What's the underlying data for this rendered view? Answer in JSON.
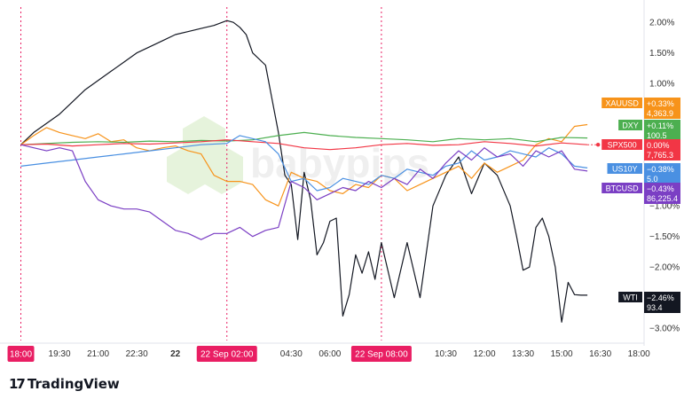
{
  "branding": {
    "logo_glyph": "17",
    "name": "TradingView",
    "watermark": "babypips"
  },
  "chart_data": {
    "type": "line",
    "y_axis": {
      "unit": "%",
      "range": [
        -3.2,
        2.25
      ],
      "ticks": [
        {
          "value": 2.0,
          "label": "2.00%"
        },
        {
          "value": 1.5,
          "label": "1.50%"
        },
        {
          "value": 1.0,
          "label": "1.00%"
        },
        {
          "value": -1.0,
          "label": "−1.00%"
        },
        {
          "value": -1.5,
          "label": "−1.50%"
        },
        {
          "value": -2.0,
          "label": "−2.00%"
        },
        {
          "value": -3.0,
          "label": "−3.00%"
        }
      ]
    },
    "x_axis": {
      "range_hours": [
        17.5,
        42.2
      ],
      "ticks": [
        {
          "t": 19.5,
          "label": "19:30"
        },
        {
          "t": 21.0,
          "label": "21:00"
        },
        {
          "t": 22.5,
          "label": "22:30"
        },
        {
          "t": 24.0,
          "label": "22"
        },
        {
          "t": 28.5,
          "label": "04:30"
        },
        {
          "t": 30.0,
          "label": "06:00"
        },
        {
          "t": 34.5,
          "label": "10:30"
        },
        {
          "t": 36.0,
          "label": "12:00"
        },
        {
          "t": 37.5,
          "label": "13:30"
        },
        {
          "t": 39.0,
          "label": "15:00"
        },
        {
          "t": 40.5,
          "label": "16:30"
        },
        {
          "t": 42.0,
          "label": "18:00"
        }
      ],
      "highlight_labels": [
        {
          "t": 18.0,
          "label": "18:00"
        },
        {
          "t": 26.0,
          "label": "22 Sep   02:00"
        },
        {
          "t": 32.0,
          "label": "22 Sep   08:00"
        }
      ]
    },
    "series": [
      {
        "name": "WTI",
        "color": "#131722",
        "change": "−2.46%",
        "price": "93.4",
        "t": [
          18,
          18.5,
          19,
          19.5,
          20,
          20.5,
          21,
          21.5,
          22,
          22.5,
          23,
          23.5,
          24,
          24.5,
          25,
          25.5,
          26,
          26.25,
          26.5,
          26.75,
          27,
          27.5,
          28,
          28.25,
          28.5,
          28.75,
          29,
          29.25,
          29.5,
          29.75,
          30,
          30.25,
          30.5,
          30.75,
          31,
          31.25,
          31.5,
          31.75,
          32,
          32.5,
          33,
          33.5,
          34,
          34.5,
          35,
          35.5,
          36,
          36.5,
          37,
          37.25,
          37.5,
          37.75,
          38,
          38.25,
          38.5,
          38.75,
          39,
          39.25,
          39.5,
          39.75,
          40
        ],
        "values": [
          0,
          0.2,
          0.35,
          0.5,
          0.7,
          0.9,
          1.05,
          1.2,
          1.35,
          1.5,
          1.6,
          1.7,
          1.8,
          1.85,
          1.9,
          1.95,
          2.03,
          2.0,
          1.92,
          1.8,
          1.5,
          1.3,
          0.2,
          -0.5,
          -0.65,
          -1.55,
          -0.45,
          -0.9,
          -1.8,
          -1.6,
          -1.25,
          -1.2,
          -2.8,
          -2.45,
          -1.8,
          -2.1,
          -1.75,
          -2.2,
          -1.6,
          -2.5,
          -1.6,
          -2.5,
          -1.0,
          -0.5,
          -0.2,
          -0.8,
          -0.3,
          -0.5,
          -1.0,
          -1.5,
          -2.05,
          -2.0,
          -1.35,
          -1.2,
          -1.5,
          -2.0,
          -2.9,
          -2.25,
          -2.45,
          -2.46,
          -2.46
        ]
      },
      {
        "name": "XAUUSD",
        "color": "#f7931a",
        "change": "+0.33%",
        "price": "4,363.9",
        "t": [
          18,
          18.5,
          19,
          19.5,
          20,
          20.5,
          21,
          21.5,
          22,
          22.5,
          23,
          23.5,
          24,
          24.5,
          25,
          25.5,
          26,
          26.5,
          27,
          27.5,
          28,
          28.5,
          29,
          29.5,
          30,
          30.5,
          31,
          31.5,
          32,
          32.5,
          33,
          33.5,
          34,
          34.5,
          35,
          35.5,
          36,
          36.5,
          37,
          37.5,
          38,
          38.5,
          39,
          39.5,
          40
        ],
        "values": [
          0,
          0.15,
          0.28,
          0.2,
          0.15,
          0.1,
          0.18,
          0.05,
          0.08,
          -0.05,
          -0.1,
          -0.05,
          -0.02,
          -0.1,
          -0.15,
          -0.5,
          -0.6,
          -0.6,
          -0.65,
          -0.9,
          -1.0,
          -0.45,
          -0.55,
          -0.6,
          -0.75,
          -0.8,
          -0.65,
          -0.7,
          -0.5,
          -0.55,
          -0.75,
          -0.65,
          -0.55,
          -0.45,
          -0.35,
          -0.55,
          -0.3,
          -0.45,
          -0.35,
          -0.25,
          0.0,
          0.1,
          0.05,
          0.3,
          0.33
        ]
      },
      {
        "name": "DXY",
        "color": "#4caf50",
        "change": "+0.11%",
        "price": "100.5",
        "t": [
          18,
          19,
          20,
          21,
          22,
          23,
          24,
          25,
          26,
          27,
          28,
          29,
          30,
          31,
          32,
          33,
          34,
          35,
          36,
          37,
          38,
          39,
          40
        ],
        "values": [
          0,
          0.02,
          0.04,
          0.05,
          0.04,
          0.06,
          0.05,
          0.07,
          0.06,
          0.08,
          0.15,
          0.2,
          0.15,
          0.12,
          0.1,
          0.08,
          0.05,
          0.1,
          0.08,
          0.1,
          0.05,
          0.12,
          0.11
        ]
      },
      {
        "name": "SPX500",
        "color": "#f23645",
        "change": "0.00%",
        "price": "7,765.3",
        "t": [
          18,
          19,
          20,
          21,
          22,
          23,
          24,
          25,
          26,
          27,
          28,
          29,
          30,
          31,
          32,
          33,
          34,
          35,
          36,
          37,
          38,
          39,
          40
        ],
        "values": [
          0,
          0.01,
          -0.02,
          0.0,
          0.02,
          0.01,
          0.03,
          0.05,
          0.08,
          0.05,
          0.02,
          -0.05,
          -0.08,
          -0.05,
          0.0,
          0.02,
          -0.01,
          0.0,
          0.05,
          0.02,
          -0.02,
          0.03,
          0.0
        ]
      },
      {
        "name": "US10Y",
        "color": "#4a90e2",
        "change": "−0.38%",
        "price": "5.0",
        "t": [
          18,
          19,
          20,
          21,
          22,
          23,
          24,
          25,
          26,
          26.5,
          27,
          27.5,
          28,
          28.5,
          29,
          29.5,
          30,
          30.5,
          31,
          31.5,
          32,
          32.5,
          33,
          33.5,
          34,
          34.5,
          35,
          35.5,
          36,
          36.5,
          37,
          37.5,
          38,
          38.5,
          39,
          39.5,
          40
        ],
        "values": [
          -0.35,
          -0.3,
          -0.25,
          -0.2,
          -0.15,
          -0.1,
          -0.05,
          0.0,
          0.02,
          0.15,
          0.1,
          0.05,
          -0.15,
          -0.6,
          -0.55,
          -0.75,
          -0.7,
          -0.55,
          -0.6,
          -0.65,
          -0.5,
          -0.55,
          -0.4,
          -0.45,
          -0.5,
          -0.35,
          -0.3,
          -0.1,
          -0.25,
          -0.2,
          -0.1,
          -0.15,
          -0.2,
          -0.05,
          -0.15,
          -0.35,
          -0.38
        ]
      },
      {
        "name": "BTCUSD",
        "color": "#7b3fc4",
        "change": "−0.43%",
        "price": "86,225.4",
        "t": [
          18,
          18.5,
          19,
          19.5,
          20,
          20.5,
          21,
          21.5,
          22,
          22.5,
          23,
          23.5,
          24,
          24.5,
          25,
          25.5,
          26,
          26.5,
          27,
          27.5,
          28,
          28.5,
          29,
          29.5,
          30,
          30.5,
          31,
          31.5,
          32,
          32.5,
          33,
          33.5,
          34,
          34.5,
          35,
          35.5,
          36,
          36.5,
          37,
          37.5,
          38,
          38.5,
          39,
          39.5,
          40
        ],
        "values": [
          0,
          -0.05,
          -0.1,
          -0.05,
          -0.1,
          -0.6,
          -0.9,
          -1.0,
          -1.05,
          -1.05,
          -1.1,
          -1.25,
          -1.4,
          -1.45,
          -1.55,
          -1.45,
          -1.45,
          -1.35,
          -1.5,
          -1.4,
          -1.35,
          -0.6,
          -0.7,
          -0.9,
          -0.8,
          -0.7,
          -0.75,
          -0.6,
          -0.7,
          -0.55,
          -0.65,
          -0.4,
          -0.55,
          -0.3,
          -0.1,
          -0.25,
          -0.05,
          -0.2,
          -0.15,
          -0.35,
          -0.1,
          -0.2,
          -0.1,
          -0.4,
          -0.43
        ]
      }
    ],
    "legend_position": "right",
    "grid": false
  }
}
